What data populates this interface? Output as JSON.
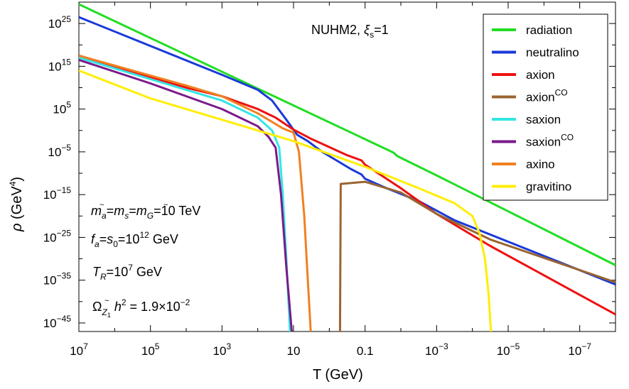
{
  "chart_data": {
    "type": "line",
    "title": "NUHM2, ξs=1",
    "xlabel": "T  (GeV)",
    "ylabel": "ρ (GeV⁴)",
    "x_scale": "log-reversed",
    "y_scale": "log",
    "xlim_log10": [
      7,
      -8
    ],
    "ylim_log10": [
      -47,
      30
    ],
    "x_ticks": [
      {
        "log": 7,
        "base": "10",
        "exp": "7"
      },
      {
        "log": 5,
        "base": "10",
        "exp": "5"
      },
      {
        "log": 3,
        "base": "10",
        "exp": "3"
      },
      {
        "log": 1,
        "base": "10",
        "exp": ""
      },
      {
        "log": -1,
        "base": "0.1",
        "exp": ""
      },
      {
        "log": -3,
        "base": "10",
        "exp": "−3"
      },
      {
        "log": -5,
        "base": "10",
        "exp": "−5"
      },
      {
        "log": -7,
        "base": "10",
        "exp": "−7"
      }
    ],
    "y_ticks": [
      {
        "log": 25,
        "base": "10",
        "exp": "25"
      },
      {
        "log": 15,
        "base": "10",
        "exp": "15"
      },
      {
        "log": 5,
        "base": "10",
        "exp": "5"
      },
      {
        "log": -5,
        "base": "10",
        "exp": "−5"
      },
      {
        "log": -15,
        "base": "10",
        "exp": "−15"
      },
      {
        "log": -25,
        "base": "10",
        "exp": "−25"
      },
      {
        "log": -35,
        "base": "10",
        "exp": "−35"
      },
      {
        "log": -45,
        "base": "10",
        "exp": "−45"
      }
    ],
    "legend_position": "top-right",
    "series": [
      {
        "name": "radiation",
        "sup": "",
        "color": "#22dd22",
        "points": [
          [
            7,
            29.5
          ],
          [
            -1.8,
            -5.2
          ],
          [
            -1.9,
            -6.0
          ],
          [
            -3,
            -10.5
          ],
          [
            -8,
            -31.5
          ]
        ]
      },
      {
        "name": "neutralino",
        "sup": "",
        "color": "#1a3ad8",
        "points": [
          [
            7,
            26.5
          ],
          [
            3,
            13.0
          ],
          [
            2,
            9.5
          ],
          [
            1.6,
            7.0
          ],
          [
            1.2,
            2.5
          ],
          [
            0.9,
            -1.0
          ],
          [
            0.6,
            -2.5
          ],
          [
            0.2,
            -5.0
          ],
          [
            -0.6,
            -9.0
          ],
          [
            -0.9,
            -10.3
          ],
          [
            -1.0,
            -11.3
          ],
          [
            -1.6,
            -13.5
          ],
          [
            -2.5,
            -16.5
          ],
          [
            -3.5,
            -21.0
          ],
          [
            -5,
            -26.0
          ],
          [
            -8,
            -36.0
          ]
        ]
      },
      {
        "name": "axion",
        "sup": "",
        "color": "#ee1111",
        "points": [
          [
            7,
            17.5
          ],
          [
            6,
            15.0
          ],
          [
            4,
            10.0
          ],
          [
            3,
            8.0
          ],
          [
            2,
            5.0
          ],
          [
            1.5,
            3.0
          ],
          [
            1.0,
            0.2
          ],
          [
            0.5,
            -2.0
          ],
          [
            -0.5,
            -5.8
          ],
          [
            -0.9,
            -7.0
          ],
          [
            -1.0,
            -8.0
          ],
          [
            -2.0,
            -13.5
          ],
          [
            -3.0,
            -19.5
          ],
          [
            -4.5,
            -27.0
          ],
          [
            -8,
            -43.0
          ]
        ]
      },
      {
        "name": "axion",
        "sup": "CO",
        "color": "#9a6432",
        "points": [
          [
            -0.3,
            -47.0
          ],
          [
            -0.32,
            -12.5
          ],
          [
            -1.0,
            -12.0
          ],
          [
            -2.0,
            -14.5
          ],
          [
            -3.0,
            -19.5
          ],
          [
            -4.5,
            -25.5
          ],
          [
            -8,
            -35.5
          ]
        ]
      },
      {
        "name": "saxion",
        "sup": "",
        "color": "#33e5e5",
        "points": [
          [
            7,
            17.0
          ],
          [
            5,
            12.0
          ],
          [
            3,
            7.0
          ],
          [
            2,
            3.0
          ],
          [
            1.6,
            0.0
          ],
          [
            1.4,
            -4.0
          ],
          [
            1.3,
            -15.0
          ],
          [
            1.2,
            -30.0
          ],
          [
            1.1,
            -47.0
          ]
        ]
      },
      {
        "name": "saxion",
        "sup": "CO",
        "color": "#7a1a8a",
        "points": [
          [
            7,
            16.5
          ],
          [
            5,
            11.0
          ],
          [
            3,
            5.0
          ],
          [
            2,
            1.0
          ],
          [
            1.7,
            -1.5
          ],
          [
            1.5,
            -4.0
          ],
          [
            1.35,
            -15.0
          ],
          [
            1.2,
            -32.0
          ],
          [
            1.05,
            -47.0
          ]
        ]
      },
      {
        "name": "axino",
        "sup": "",
        "color": "#f08020",
        "points": [
          [
            7,
            17.5
          ],
          [
            4,
            10.5
          ],
          [
            3,
            8.0
          ],
          [
            2,
            4.0
          ],
          [
            1.3,
            0.5
          ],
          [
            1.0,
            -0.5
          ],
          [
            0.85,
            -5.0
          ],
          [
            0.7,
            -20.0
          ],
          [
            0.6,
            -35.0
          ],
          [
            0.52,
            -47.0
          ]
        ]
      },
      {
        "name": "gravitino",
        "sup": "",
        "color": "#ffee00",
        "points": [
          [
            7,
            14.0
          ],
          [
            5,
            7.5
          ],
          [
            3,
            2.5
          ],
          [
            1,
            -2.5
          ],
          [
            -1,
            -8.5
          ],
          [
            -2.5,
            -13.5
          ],
          [
            -3.5,
            -17.0
          ],
          [
            -4.0,
            -20.0
          ],
          [
            -4.2,
            -24.0
          ],
          [
            -4.35,
            -30.0
          ],
          [
            -4.45,
            -38.0
          ],
          [
            -4.52,
            -47.0
          ]
        ]
      }
    ],
    "annotations": {
      "line1": "ma~=ms=mG~=10 TeV",
      "line2": "fa=s0=10^12 GeV",
      "line3": "TR=10^7 GeV",
      "line4": "ΩZ~1 h^2 = 1.9×10^−2",
      "unit_tev": "TeV",
      "unit_gev": "GeV",
      "val_10": "10",
      "exp_12": "12",
      "exp_7": "7",
      "exp_2": "2",
      "omega_val": "= 1.9×10",
      "omega_exp": "−2"
    }
  }
}
